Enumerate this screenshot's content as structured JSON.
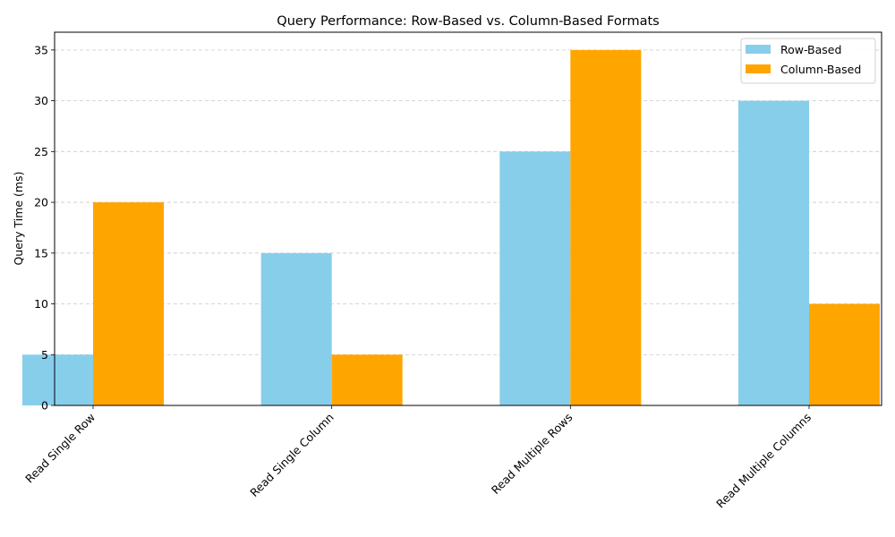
{
  "chart_data": {
    "type": "bar",
    "title": "Query Performance: Row-Based vs. Column-Based Formats",
    "xlabel": "",
    "ylabel": "Query Time (ms)",
    "categories": [
      "Read Single Row",
      "Read Single Column",
      "Read Multiple Rows",
      "Read Multiple Columns"
    ],
    "series": [
      {
        "name": "Row-Based",
        "values": [
          5,
          15,
          25,
          30
        ],
        "color": "#87CEEB"
      },
      {
        "name": "Column-Based",
        "values": [
          20,
          5,
          35,
          10
        ],
        "color": "#FFA500"
      }
    ],
    "ylim": [
      0,
      36.75
    ],
    "yticks": [
      0,
      5,
      10,
      15,
      20,
      25,
      30,
      35
    ],
    "grid": "y-dashed",
    "legend_position": "top-right"
  }
}
